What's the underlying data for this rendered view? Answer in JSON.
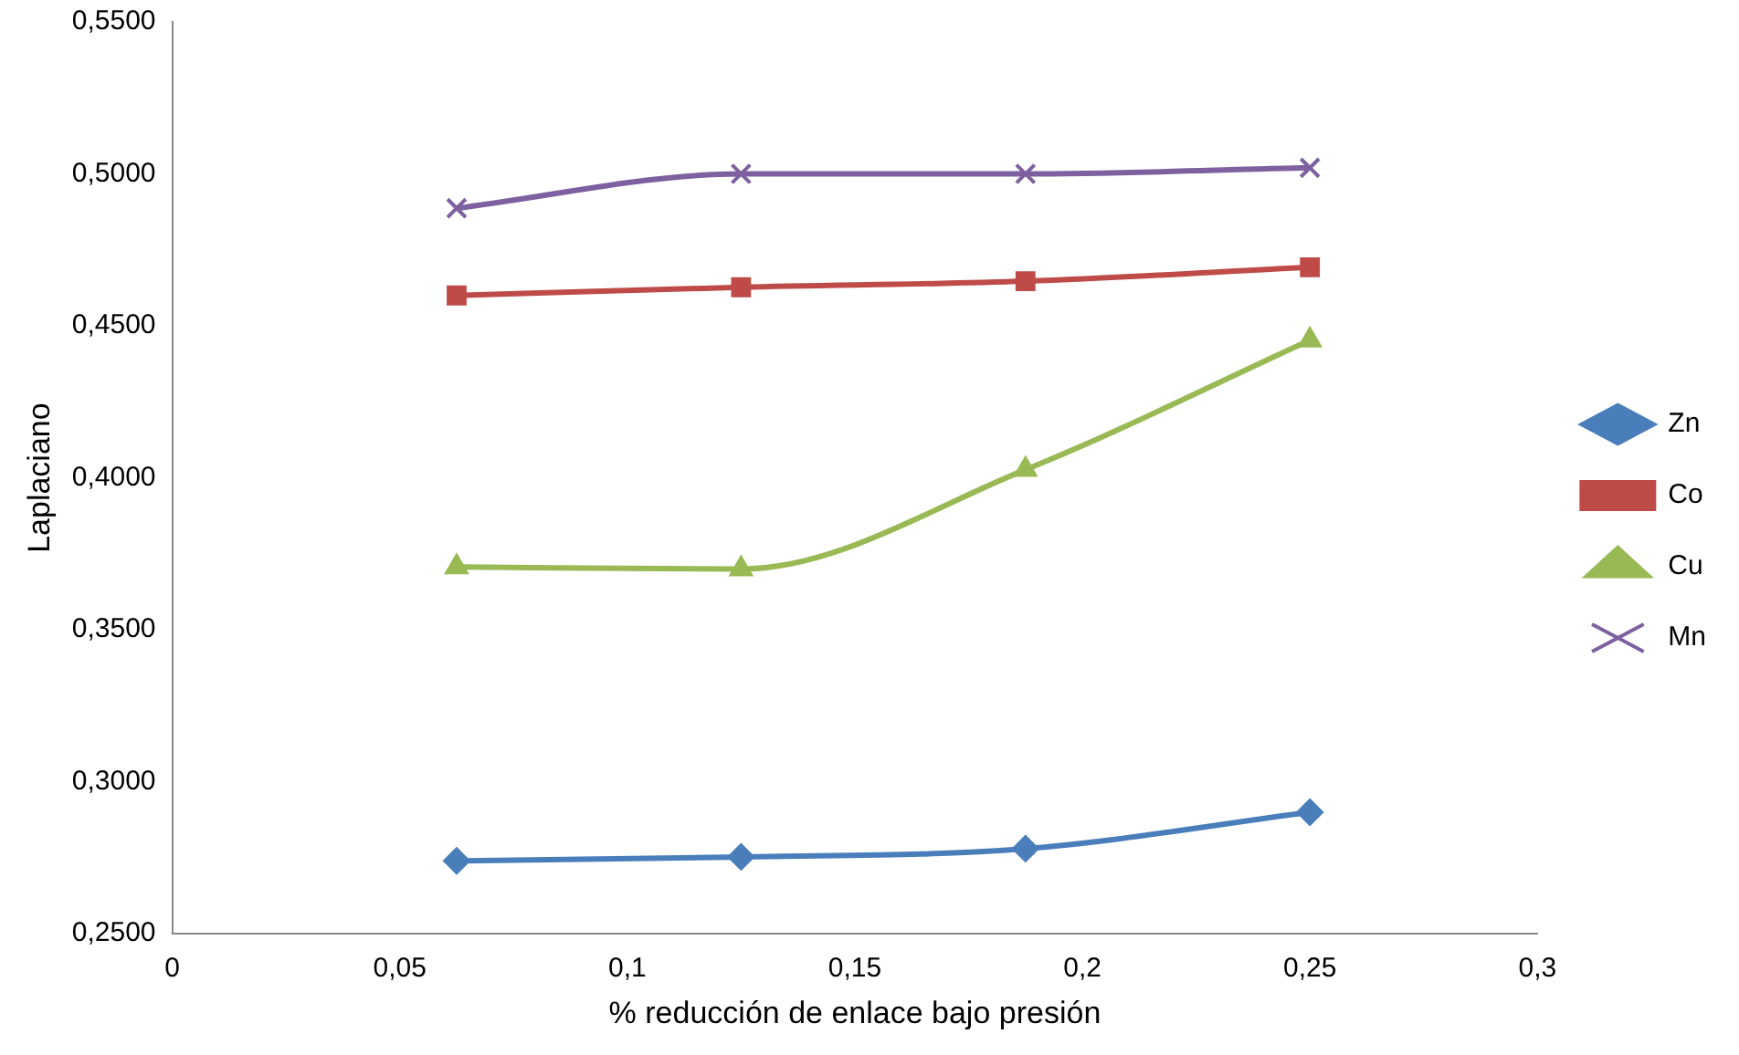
{
  "chart_data": {
    "type": "line",
    "xlabel": "% reducción de enlace bajo presión",
    "ylabel": "Laplaciano",
    "x": [
      0.0625,
      0.125,
      0.1875,
      0.25
    ],
    "series": [
      {
        "name": "Zn",
        "color": "#4a7ebb",
        "marker": "diamond",
        "values": [
          0.274,
          0.2753,
          0.278,
          0.29
        ]
      },
      {
        "name": "Co",
        "color": "#be4b48",
        "marker": "square",
        "values": [
          0.46,
          0.4627,
          0.4647,
          0.4693
        ]
      },
      {
        "name": "Cu",
        "color": "#98b954",
        "marker": "triangle",
        "values": [
          0.3707,
          0.37,
          0.4027,
          0.4453
        ]
      },
      {
        "name": "Mn",
        "color": "#7d60a0",
        "marker": "cross",
        "values": [
          0.4887,
          0.5,
          0.5,
          0.502
        ]
      }
    ],
    "xlim": [
      0,
      0.3
    ],
    "xticks": [
      0,
      {
        "value": 0.05,
        "label": "0,05"
      },
      {
        "value": 0.1,
        "label": "0,1"
      },
      {
        "value": 0.15,
        "label": "0,15"
      },
      {
        "value": 0.2,
        "label": "0,2"
      },
      {
        "value": 0.25,
        "label": "0,25"
      },
      {
        "value": 0.3,
        "label": "0,3"
      }
    ],
    "ylim": [
      0.25,
      0.55
    ],
    "yticks": [
      {
        "value": 0.25,
        "label": "0,2500"
      },
      {
        "value": 0.3,
        "label": "0,3000"
      },
      {
        "value": 0.35,
        "label": "0,3500"
      },
      {
        "value": 0.4,
        "label": "0,4000"
      },
      {
        "value": 0.45,
        "label": "0,4500"
      },
      {
        "value": 0.5,
        "label": "0,5000"
      },
      {
        "value": 0.55,
        "label": "0,5500"
      }
    ],
    "grid": false,
    "legend": "right",
    "line_style": "solid"
  }
}
